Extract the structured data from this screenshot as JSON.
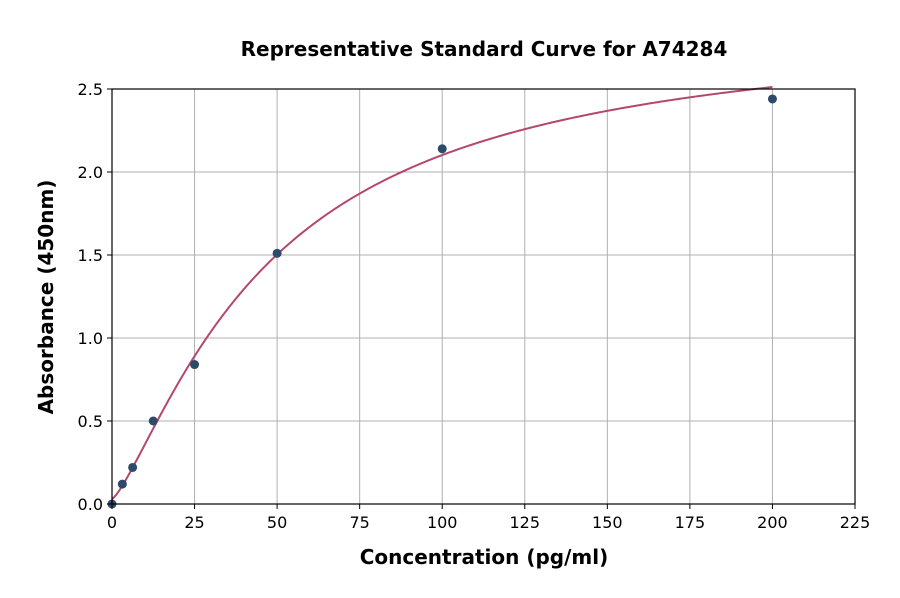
{
  "chart_data": {
    "type": "scatter",
    "title": "Representative Standard Curve for A74284",
    "xlabel": "Concentration (pg/ml)",
    "ylabel": "Absorbance (450nm)",
    "xlim": [
      0,
      225
    ],
    "ylim": [
      0,
      2.5
    ],
    "xticks": [
      "0",
      "25",
      "50",
      "75",
      "100",
      "125",
      "150",
      "175",
      "200",
      "225"
    ],
    "yticks": [
      "0.0",
      "0.5",
      "1.0",
      "1.5",
      "2.0",
      "2.5"
    ],
    "grid": true,
    "points": {
      "x": [
        0,
        3.125,
        6.25,
        12.5,
        25,
        50,
        100,
        200
      ],
      "y": [
        0.0,
        0.12,
        0.22,
        0.5,
        0.84,
        1.51,
        2.14,
        2.44
      ],
      "color": "#2e4a6b"
    },
    "fit_curve": {
      "model": "4PL",
      "a": 0.03,
      "b": 1.3,
      "c": 48,
      "d": 2.9,
      "x_range": [
        0,
        200
      ],
      "color": "#b5476b"
    }
  }
}
